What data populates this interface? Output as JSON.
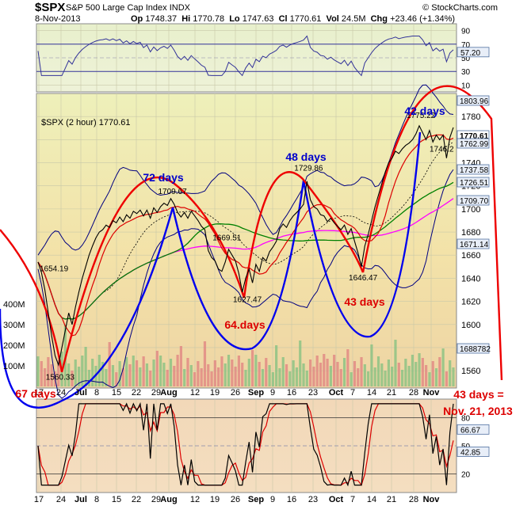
{
  "header": {
    "symbol": "$SPX",
    "name": "S&P 500 Large Cap Index",
    "exchange": "INDX",
    "date": "8-Nov-2013",
    "op_label": "Op",
    "op": "1748.37",
    "hi_label": "Hi",
    "hi": "1770.78",
    "lo_label": "Lo",
    "lo": "1747.63",
    "cl_label": "Cl",
    "cl": "1770.61",
    "vol_label": "Vol",
    "vol": "24.5M",
    "chg_label": "Chg",
    "chg": "+23.46 (+1.34%)",
    "copyright": "© StockCharts.com"
  },
  "chart_data": {
    "type": "line",
    "main_label": "$SPX (2 hour) 1770.61",
    "x_ticks": [
      "17",
      "24",
      "Jul",
      "8",
      "15",
      "22",
      "29",
      "Aug",
      "12",
      "19",
      "26",
      "Sep",
      "9",
      "16",
      "23",
      "Oct",
      "7",
      "14",
      "21",
      "28",
      "Nov"
    ],
    "price_axis": {
      "range": [
        1545,
        1800
      ],
      "ticks": [
        1560,
        1580,
        1600,
        1620,
        1640,
        1660,
        1680,
        1700,
        1720,
        1740,
        1760,
        1780
      ]
    },
    "volume_axis": {
      "ticks": [
        "100M",
        "200M",
        "300M",
        "400M"
      ]
    },
    "rsi_panel": {
      "range": [
        0,
        100
      ],
      "ticks": [
        10,
        30,
        50,
        70,
        90
      ],
      "value": "57.20"
    },
    "stoch_panel": {
      "range": [
        0,
        100
      ],
      "ticks": [
        20,
        50,
        80
      ],
      "values": [
        "66.67",
        "42.85"
      ]
    },
    "price_labels": [
      "1803.96",
      "1770.61",
      "1762.99",
      "1737.58",
      "1726.51",
      "1709.70",
      "1671.14",
      "1688782"
    ],
    "point_labels": [
      {
        "text": "1654.19",
        "x": 0,
        "y": 1654.19
      },
      {
        "text": "1560.33",
        "x": 6,
        "y": 1560.33
      },
      {
        "text": "1709.67",
        "x": 39,
        "y": 1709.67
      },
      {
        "text": "1669.51",
        "x": 55,
        "y": 1669.51
      },
      {
        "text": "1627.47",
        "x": 61,
        "y": 1627.47
      },
      {
        "text": "1729.86",
        "x": 79,
        "y": 1729.86
      },
      {
        "text": "1646.47",
        "x": 95,
        "y": 1646.47
      },
      {
        "text": "1775.22",
        "x": 112,
        "y": 1775.22
      },
      {
        "text": "1746.2",
        "x": 121,
        "y": 1746.2
      }
    ],
    "close": [
      1654,
      1645,
      1630,
      1610,
      1590,
      1573,
      1565,
      1580,
      1595,
      1610,
      1600,
      1615,
      1628,
      1640,
      1650,
      1660,
      1668,
      1675,
      1680,
      1682,
      1686,
      1684,
      1690,
      1688,
      1693,
      1689,
      1695,
      1692,
      1698,
      1696,
      1699,
      1694,
      1699,
      1692,
      1701,
      1697,
      1702,
      1705,
      1703,
      1709,
      1704,
      1697,
      1693,
      1697,
      1692,
      1698,
      1694,
      1690,
      1685,
      1682,
      1664,
      1658,
      1655,
      1648,
      1646,
      1654,
      1665,
      1660,
      1655,
      1644,
      1628,
      1640,
      1648,
      1636,
      1652,
      1646,
      1658,
      1655,
      1663,
      1667,
      1672,
      1683,
      1687,
      1684,
      1690,
      1694,
      1697,
      1700,
      1704,
      1724,
      1708,
      1702,
      1700,
      1695,
      1694,
      1689,
      1692,
      1688,
      1685,
      1682,
      1686,
      1678,
      1683,
      1672,
      1662,
      1650,
      1668,
      1678,
      1690,
      1702,
      1712,
      1722,
      1732,
      1740,
      1744,
      1750,
      1748,
      1752,
      1755,
      1757,
      1760,
      1765,
      1772,
      1766,
      1760,
      1768,
      1758,
      1764,
      1760,
      1764,
      1744,
      1762,
      1770.61
    ],
    "annotations": [
      {
        "text": "72 days",
        "color": "#0000cc"
      },
      {
        "text": "48 days",
        "color": "#0000cc"
      },
      {
        "text": "42 days",
        "color": "#0000cc"
      },
      {
        "text": "64.days",
        "color": "#dd0000"
      },
      {
        "text": "43 days",
        "color": "#dd0000"
      },
      {
        "text": "67 days",
        "color": "#dd0000"
      },
      {
        "text": "43 days =",
        "color": "#dd0000"
      },
      {
        "text": "Nov. 21, 2013",
        "color": "#dd0000"
      }
    ]
  },
  "colors": {
    "price": "#000000",
    "ma_short": "#dd0000",
    "ma_mid": "#008000",
    "ma_long": "#ff00ff",
    "band": "#000080",
    "cycle_blue": "#0000ee",
    "cycle_red": "#ee0000",
    "vol_up": "#80c080",
    "vol_down": "#e08080",
    "rsi": "#333399",
    "stoch_k": "#000000",
    "stoch_d": "#dd0000"
  }
}
